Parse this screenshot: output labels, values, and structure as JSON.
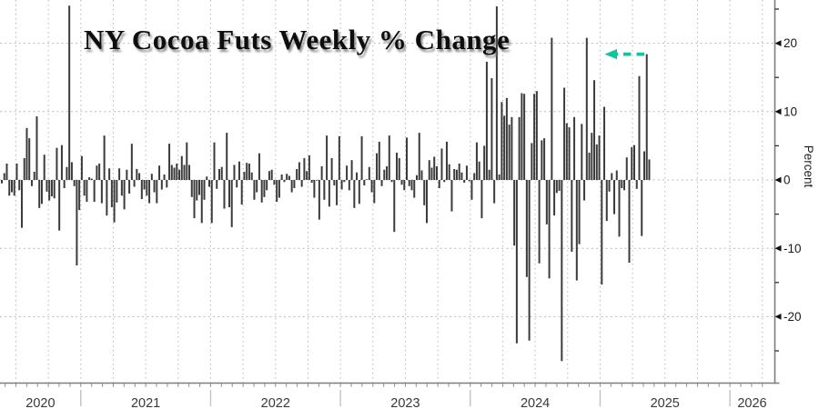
{
  "chart_data": {
    "type": "bar",
    "title": "NY Cocoa Futs Weekly % Change",
    "ylabel": "Percent",
    "frequency": "weekly",
    "grid": true,
    "legend": "none",
    "ylim": [
      -29.7,
      26.3
    ],
    "y_ticks": [
      20,
      10,
      0,
      -10,
      -20
    ],
    "y_tick_labels": [
      "20",
      "10",
      "0",
      "-10",
      "-20"
    ],
    "y_minor_ticks": [
      25,
      15,
      5,
      -5,
      -15,
      -25
    ],
    "x_year_labels": [
      "2020",
      "2021",
      "2022",
      "2023",
      "2024",
      "2025",
      "2026"
    ],
    "x_range_note": "weekly bars from mid-2020 through early-May 2025; axis extends to 2026",
    "values": [
      -0.5,
      1.0,
      2.4,
      -2.3,
      -1.8,
      -2.3,
      2.4,
      -1.5,
      -7.0,
      3.2,
      7.6,
      6.1,
      -0.9,
      1.2,
      9.3,
      -4.1,
      -3.5,
      3.7,
      -1.7,
      -3.0,
      -2.4,
      -2.7,
      4.7,
      -7.4,
      5.1,
      -1.2,
      1.9,
      25.5,
      2.6,
      -0.9,
      -12.5,
      -4.4,
      3.5,
      -2.3,
      -3.2,
      0.4,
      0.2,
      -3.2,
      2.1,
      2.4,
      -3.4,
      6.5,
      -5.2,
      1.7,
      -4.0,
      -6.2,
      -3.3,
      1.7,
      -2.3,
      -4.3,
      1.5,
      -2.0,
      5.3,
      -1.0,
      1.6,
      1.0,
      -2.8,
      -1.4,
      -2.3,
      -3.4,
      0.9,
      -1.8,
      -3.4,
      2.1,
      -1.4,
      0.8,
      -1.1,
      5.3,
      2.2,
      1.8,
      2.4,
      1.5,
      3.5,
      2.2,
      5.5,
      2.2,
      -2.5,
      -5.6,
      -3.0,
      -2.2,
      -6.3,
      -2.9,
      0.5,
      -1.0,
      -6.3,
      5.5,
      -1.3,
      1.6,
      1.9,
      -4.2,
      6.9,
      -4.0,
      -6.9,
      2.2,
      -1.1,
      2.7,
      -3.6,
      1.2,
      2.5,
      2.4,
      1.1,
      -2.9,
      -1.8,
      3.9,
      -3.3,
      -2.5,
      -1.5,
      1.3,
      1.5,
      -0.7,
      -3.2,
      -2.6,
      0.8,
      -0.3,
      0.9,
      0.6,
      -1.8,
      -1.2,
      1.6,
      2.6,
      -1.0,
      3.2,
      1.3,
      3.6,
      -0.4,
      -2.6,
      -0.1,
      -5.8,
      2.0,
      -2.9,
      6.5,
      -3.9,
      3.2,
      -0.8,
      -3.7,
      6.4,
      -1.4,
      -0.3,
      2.1,
      -1.5,
      2.9,
      -4.1,
      1.1,
      -3.5,
      6.4,
      -0.8,
      0.1,
      1.9,
      -1.8,
      -3.4,
      3.9,
      5.6,
      -0.9,
      1.5,
      2.0,
      6.5,
      -0.3,
      -7.6,
      4.0,
      3.2,
      -0.7,
      -1.5,
      6.2,
      -0.9,
      -1.5,
      -2.6,
      0.7,
      6.9,
      1.4,
      -3.7,
      -6.3,
      2.9,
      1.8,
      3.4,
      2.0,
      -1.2,
      4.6,
      -0.3,
      5.6,
      2.3,
      -4.6,
      1.6,
      1.5,
      2.4,
      1.1,
      -0.4,
      2.1,
      -0.2,
      -2.9,
      1.0,
      5.5,
      2.7,
      -5.6,
      5.0,
      17.3,
      1.5,
      14.9,
      -3.4,
      25.4,
      0.8,
      11.4,
      9.4,
      12.0,
      8.1,
      9.2,
      -9.6,
      -23.9,
      9.2,
      12.7,
      12.6,
      -14.2,
      -23.5,
      5.4,
      12.6,
      13.0,
      -12.2,
      5.8,
      6.1,
      -6.5,
      -14.4,
      20.8,
      -5.2,
      -1.9,
      -1.6,
      -26.5,
      13.5,
      8.3,
      7.7,
      -10.5,
      9.2,
      -14.7,
      -9.4,
      8.2,
      -3.0,
      20.8,
      4.0,
      6.9,
      14.6,
      5.2,
      6.5,
      -15.3,
      10.7,
      -6.0,
      -1.7,
      1.0,
      -5.0,
      1.4,
      -8.3,
      -1.2,
      -1.5,
      3.3,
      -12.1,
      4.8,
      5.1,
      -1.3,
      15.2,
      -8.2,
      4.2,
      18.4,
      3.0
    ],
    "annotation": {
      "type": "dashed-arrow-left",
      "value_pointed": 18.4,
      "color": "#12c4a0"
    },
    "colors": {
      "bar": "#3b3b3b",
      "grid": "#b8b8b8",
      "axis": "#7d7d7d",
      "tick_label": "#1a1a1a",
      "year_label": "#383838",
      "title": "#0e0e0e",
      "arrow": "#12c4a0"
    }
  }
}
